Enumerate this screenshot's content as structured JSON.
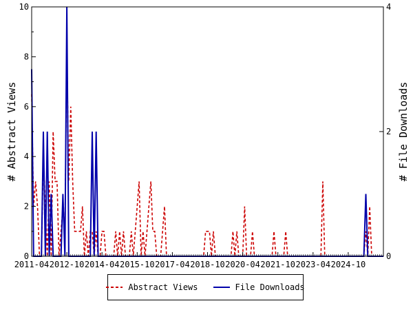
{
  "chart_data": {
    "type": "line",
    "xlabel": "",
    "y_left_label": "# Abstract Views",
    "y_right_label": "# File Downloads",
    "x_range": [
      "2011-04",
      "2026-04"
    ],
    "y_left_range": [
      0,
      10
    ],
    "y_right_range": [
      0,
      4
    ],
    "y_left_ticks": [
      "0",
      "2",
      "4",
      "6",
      "8",
      "10"
    ],
    "y_right_ticks": [
      "0",
      "2",
      "4"
    ],
    "x_ticks": [
      "2011-04",
      "2012-10",
      "2014-04",
      "2015-10",
      "2017-04",
      "2018-10",
      "2020-04",
      "2021-10",
      "2023-04",
      "2024-10"
    ],
    "legend_position": "bottom",
    "series": [
      {
        "name": "Abstract Views",
        "axis": "left",
        "color": "#cc0000",
        "style": "dashed",
        "points": [
          [
            "2011-04",
            6.5
          ],
          [
            "2011-05",
            2.0
          ],
          [
            "2011-06",
            3.0
          ],
          [
            "2011-07",
            2.0
          ],
          [
            "2011-08",
            0
          ],
          [
            "2011-09",
            0
          ],
          [
            "2011-10",
            4.0
          ],
          [
            "2011-11",
            2.0
          ],
          [
            "2011-12",
            0
          ],
          [
            "2012-01",
            3.0
          ],
          [
            "2012-02",
            0
          ],
          [
            "2012-03",
            5.0
          ],
          [
            "2012-04",
            3.0
          ],
          [
            "2012-05",
            3.0
          ],
          [
            "2012-06",
            0
          ],
          [
            "2012-07",
            1.0
          ],
          [
            "2012-08",
            2.0
          ],
          [
            "2012-09",
            1.0
          ],
          [
            "2012-10",
            8.5
          ],
          [
            "2012-11",
            3.0
          ],
          [
            "2012-12",
            6.0
          ],
          [
            "2013-01",
            3.0
          ],
          [
            "2013-02",
            1.0
          ],
          [
            "2013-03",
            1.0
          ],
          [
            "2013-04",
            1.0
          ],
          [
            "2013-05",
            1.0
          ],
          [
            "2013-06",
            2.0
          ],
          [
            "2013-07",
            0
          ],
          [
            "2013-08",
            1.0
          ],
          [
            "2013-09",
            0
          ],
          [
            "2013-10",
            1.0
          ],
          [
            "2013-11",
            1.0
          ],
          [
            "2013-12",
            0
          ],
          [
            "2014-01",
            1.0
          ],
          [
            "2014-02",
            0
          ],
          [
            "2014-03",
            0
          ],
          [
            "2014-04",
            1.0
          ],
          [
            "2014-05",
            1.0
          ],
          [
            "2014-06",
            0
          ],
          [
            "2014-07",
            0
          ],
          [
            "2014-08",
            0
          ],
          [
            "2014-09",
            0
          ],
          [
            "2014-10",
            0
          ],
          [
            "2014-11",
            1.0
          ],
          [
            "2014-12",
            0
          ],
          [
            "2015-01",
            1.0
          ],
          [
            "2015-02",
            0
          ],
          [
            "2015-03",
            1.0
          ],
          [
            "2015-04",
            0
          ],
          [
            "2015-05",
            0
          ],
          [
            "2015-06",
            0
          ],
          [
            "2015-07",
            1.0
          ],
          [
            "2015-08",
            0
          ],
          [
            "2015-09",
            1.0
          ],
          [
            "2015-10",
            2.0
          ],
          [
            "2015-11",
            3.0
          ],
          [
            "2015-12",
            0
          ],
          [
            "2016-01",
            1.0
          ],
          [
            "2016-02",
            0
          ],
          [
            "2016-03",
            1.0
          ],
          [
            "2016-04",
            2.0
          ],
          [
            "2016-05",
            3.0
          ],
          [
            "2016-06",
            1.0
          ],
          [
            "2016-07",
            1.0
          ],
          [
            "2016-08",
            0
          ],
          [
            "2016-09",
            0
          ],
          [
            "2016-10",
            0
          ],
          [
            "2016-11",
            1.0
          ],
          [
            "2016-12",
            2.0
          ],
          [
            "2017-01",
            0
          ],
          [
            "2017-02",
            0
          ],
          [
            "2017-03",
            0
          ],
          [
            "2017-04",
            0
          ],
          [
            "2018-08",
            0
          ],
          [
            "2018-09",
            1.0
          ],
          [
            "2018-10",
            1.0
          ],
          [
            "2018-11",
            1.0
          ],
          [
            "2018-12",
            0
          ],
          [
            "2019-01",
            1.0
          ],
          [
            "2019-02",
            0
          ],
          [
            "2019-03",
            0
          ],
          [
            "2019-10",
            0
          ],
          [
            "2019-11",
            1.0
          ],
          [
            "2019-12",
            0
          ],
          [
            "2020-01",
            1.0
          ],
          [
            "2020-02",
            0
          ],
          [
            "2020-03",
            0
          ],
          [
            "2020-04",
            0
          ],
          [
            "2020-05",
            2.0
          ],
          [
            "2020-06",
            0
          ],
          [
            "2020-07",
            0
          ],
          [
            "2020-08",
            0
          ],
          [
            "2020-09",
            1.0
          ],
          [
            "2020-10",
            0
          ],
          [
            "2021-07",
            0
          ],
          [
            "2021-08",
            1.0
          ],
          [
            "2021-09",
            0
          ],
          [
            "2022-01",
            0
          ],
          [
            "2022-02",
            1.0
          ],
          [
            "2022-03",
            0
          ],
          [
            "2023-08",
            0
          ],
          [
            "2023-09",
            3.0
          ],
          [
            "2023-10",
            0
          ],
          [
            "2025-06",
            0
          ],
          [
            "2025-07",
            1.0
          ],
          [
            "2025-08",
            0
          ],
          [
            "2025-09",
            2.0
          ],
          [
            "2025-10",
            0
          ]
        ]
      },
      {
        "name": "File Downloads",
        "axis": "right",
        "color": "#0000aa",
        "style": "solid",
        "points": [
          [
            "2011-04",
            3.0
          ],
          [
            "2011-05",
            0
          ],
          [
            "2011-09",
            0
          ],
          [
            "2011-10",
            2.0
          ],
          [
            "2011-11",
            0
          ],
          [
            "2011-12",
            2.0
          ],
          [
            "2012-01",
            0
          ],
          [
            "2012-02",
            1.0
          ],
          [
            "2012-03",
            0
          ],
          [
            "2012-07",
            0
          ],
          [
            "2012-08",
            1.0
          ],
          [
            "2012-09",
            0
          ],
          [
            "2012-10",
            4.0
          ],
          [
            "2012-11",
            0
          ],
          [
            "2013-10",
            0
          ],
          [
            "2013-11",
            2.0
          ],
          [
            "2013-12",
            0
          ],
          [
            "2014-01",
            2.0
          ],
          [
            "2014-02",
            0
          ],
          [
            "2025-06",
            0
          ],
          [
            "2025-07",
            1.0
          ],
          [
            "2025-08",
            0
          ]
        ]
      }
    ]
  }
}
